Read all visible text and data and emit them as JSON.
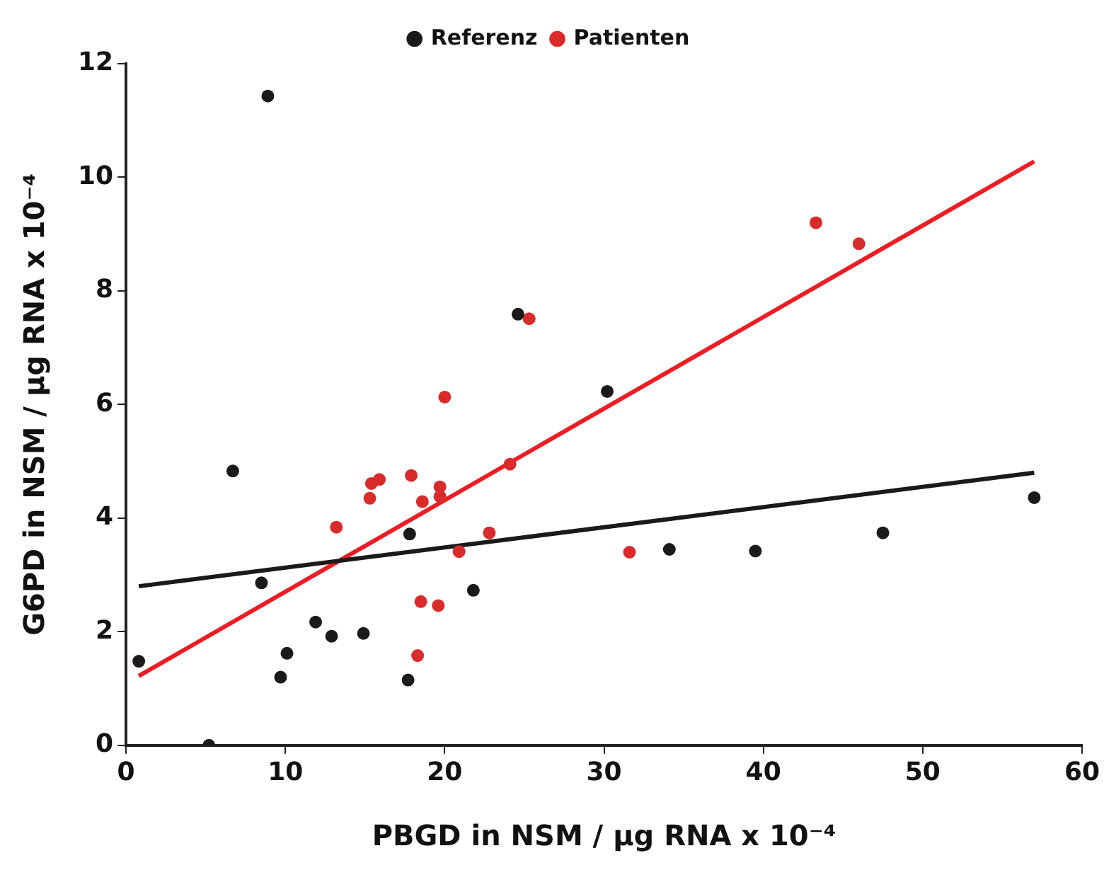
{
  "chart_data": {
    "type": "scatter",
    "xlabel": "PBGD in NSM / µg RNA x 10⁻⁴",
    "ylabel": "G6PD in NSM / µg RNA x 10⁻⁴",
    "xlim": [
      0,
      60
    ],
    "xticks": [
      0,
      10,
      20,
      30,
      40,
      50,
      60
    ],
    "ylim": [
      0,
      12
    ],
    "yticks": [
      0,
      2,
      4,
      6,
      8,
      10,
      12
    ],
    "grid": false,
    "legend": "top",
    "marker": "circle",
    "series": [
      {
        "name": "Referenz",
        "color": "#1a1a1a",
        "x": [
          0.8,
          8.9,
          6.7,
          8.5,
          5.2,
          9.7,
          10.1,
          11.9,
          12.9,
          14.9,
          17.7,
          17.8,
          21.8,
          24.6,
          30.2,
          34.1,
          39.5,
          47.5,
          57.0
        ],
        "values": [
          1.48,
          11.43,
          4.83,
          2.86,
          0.0,
          1.2,
          1.62,
          2.17,
          1.92,
          1.97,
          1.15,
          3.72,
          2.73,
          7.59,
          6.23,
          3.45,
          3.42,
          3.74,
          4.36
        ]
      },
      {
        "name": "Patienten",
        "color": "#d92b2b",
        "x": [
          13.2,
          15.3,
          15.4,
          15.9,
          17.9,
          18.6,
          19.7,
          19.7,
          20.0,
          20.9,
          22.8,
          24.1,
          25.3,
          18.5,
          19.6,
          18.3,
          31.6,
          43.3,
          46.0
        ],
        "values": [
          3.84,
          4.35,
          4.61,
          4.68,
          4.75,
          4.29,
          4.55,
          4.38,
          6.13,
          3.41,
          3.74,
          4.95,
          7.51,
          2.53,
          2.46,
          1.58,
          3.4,
          9.2,
          8.83
        ]
      },
      {
        "type": "line",
        "color": "#1a1a1a",
        "x": [
          0.8,
          57.0
        ],
        "values": [
          2.8,
          4.8
        ],
        "marker": "none"
      },
      {
        "type": "line",
        "color": "#ee1c24",
        "x": [
          0.8,
          57.0
        ],
        "values": [
          1.22,
          10.28
        ],
        "marker": "none"
      }
    ]
  }
}
